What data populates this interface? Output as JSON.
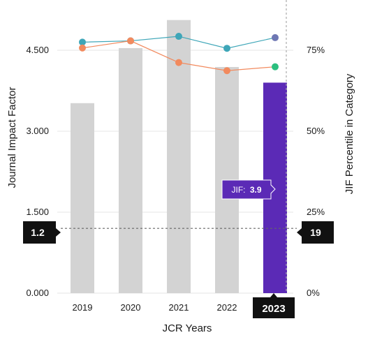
{
  "chart_data": {
    "type": "bar",
    "categories": [
      "2019",
      "2020",
      "2021",
      "2022",
      "2023"
    ],
    "xlabel": "JCR Years",
    "ylabel": "Journal Impact Factor",
    "y2label": "JIF Percentile in Category",
    "ylim": [
      0,
      5.1
    ],
    "y2lim": [
      0,
      85
    ],
    "yticks": [
      "0.000",
      "1.500",
      "3.000",
      "4.500"
    ],
    "y2ticks": [
      "0%",
      "25%",
      "50%",
      "75%"
    ],
    "grid": true,
    "bars": {
      "values": [
        3.52,
        4.54,
        5.06,
        4.19,
        3.9
      ],
      "color": "#d3d3d3",
      "highlight_index": 4,
      "highlight_color": "#5b2ab6"
    },
    "series": [
      {
        "values": [
          77.5,
          77.9,
          79.3,
          75.6,
          78.9
        ],
        "color": "#3ea6b8",
        "last_point_color": "#6e77b3"
      },
      {
        "values": [
          75.7,
          77.9,
          71.2,
          68.7,
          69.9
        ],
        "color": "#f28a5e",
        "last_point_color": "#2cbf7f"
      }
    ],
    "reference_line": {
      "left_label": "1.2",
      "right_label": "19",
      "value": 1.2
    },
    "selected_year": "2023",
    "tooltip": {
      "prefix": "JIF:",
      "value": "3.9"
    }
  }
}
